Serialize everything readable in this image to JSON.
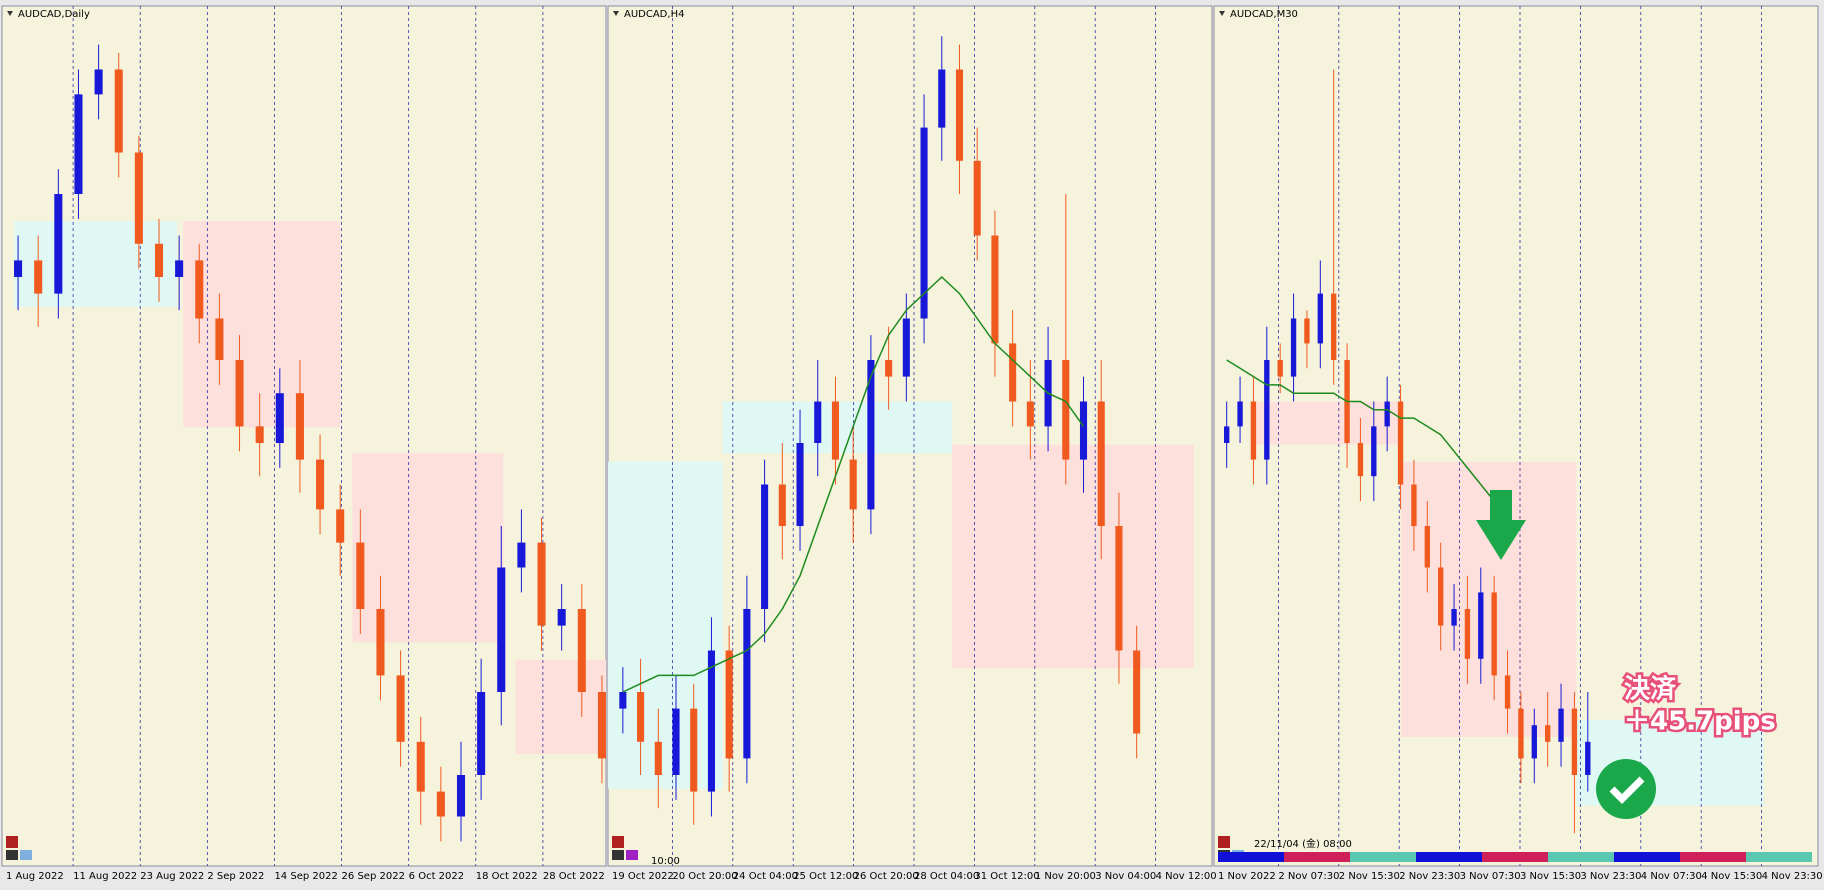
{
  "chart_data": [
    {
      "type": "candlestick",
      "title": "AUDCAD,Daily",
      "xticks": [
        "1 Aug 2022",
        "11 Aug 2022",
        "23 Aug 2022",
        "2 Sep 2022",
        "14 Sep 2022",
        "26 Sep 2022",
        "6 Oct 2022",
        "18 Oct 2022",
        "28 Oct 2022"
      ],
      "ylim": [
        0,
        100
      ],
      "up_color": "#1818d8",
      "down_color": "#f05a1e",
      "open": [
        70,
        72,
        68,
        80,
        92,
        95,
        85,
        74,
        70,
        72,
        65,
        60,
        52,
        50,
        56,
        48,
        42,
        38,
        30,
        22,
        14,
        8,
        5,
        10,
        20,
        35,
        38,
        28,
        30,
        20
      ],
      "high": [
        75,
        75,
        83,
        95,
        98,
        97,
        87,
        77,
        75,
        74,
        68,
        63,
        56,
        59,
        60,
        51,
        45,
        42,
        34,
        25,
        17,
        11,
        14,
        24,
        40,
        42,
        41,
        33,
        33,
        22
      ],
      "low": [
        66,
        64,
        65,
        77,
        89,
        82,
        71,
        67,
        66,
        62,
        57,
        49,
        46,
        47,
        44,
        39,
        34,
        27,
        19,
        11,
        4,
        2,
        2,
        7,
        16,
        32,
        25,
        25,
        17,
        9
      ],
      "close": [
        72,
        68,
        80,
        92,
        95,
        85,
        74,
        70,
        72,
        65,
        60,
        52,
        50,
        56,
        48,
        42,
        38,
        30,
        22,
        14,
        8,
        5,
        10,
        20,
        35,
        38,
        28,
        30,
        20,
        12
      ]
    },
    {
      "type": "candlestick",
      "title": "AUDCAD,H4",
      "xticks": [
        "19 Oct 2022",
        "20 Oct 20:00",
        "24 Oct 04:00",
        "25 Oct 12:00",
        "26 Oct 20:00",
        "28 Oct 04:00",
        "31 Oct 12:00",
        "1 Nov 20:00",
        "3 Nov 04:00",
        "4 Nov 12:00"
      ],
      "ylim": [
        0,
        100
      ],
      "up_color": "#1818d8",
      "down_color": "#f05a1e",
      "ma_color": "#1e8a1e",
      "open": [
        18,
        20,
        14,
        10,
        18,
        8,
        25,
        12,
        30,
        45,
        40,
        50,
        55,
        48,
        42,
        60,
        58,
        65,
        88,
        95,
        84,
        75,
        62,
        55,
        52,
        60,
        48,
        55,
        40,
        25
      ],
      "high": [
        23,
        24,
        18,
        22,
        21,
        29,
        28,
        34,
        48,
        50,
        54,
        60,
        58,
        52,
        63,
        64,
        68,
        92,
        99,
        98,
        88,
        78,
        66,
        60,
        64,
        80,
        58,
        60,
        44,
        28
      ],
      "low": [
        15,
        10,
        6,
        7,
        4,
        5,
        8,
        9,
        26,
        36,
        37,
        46,
        45,
        38,
        39,
        54,
        55,
        62,
        84,
        80,
        72,
        58,
        52,
        48,
        49,
        45,
        44,
        36,
        21,
        12
      ],
      "close": [
        20,
        14,
        10,
        18,
        8,
        25,
        12,
        30,
        45,
        40,
        50,
        55,
        48,
        42,
        60,
        58,
        65,
        88,
        95,
        84,
        75,
        62,
        55,
        52,
        60,
        48,
        55,
        40,
        25,
        15
      ],
      "ma": [
        20,
        21,
        22,
        22,
        22,
        23,
        24,
        25,
        27,
        30,
        34,
        40,
        46,
        52,
        58,
        63,
        66,
        68,
        70,
        68,
        65,
        62,
        60,
        58,
        56,
        55,
        52,
        null,
        null,
        null
      ],
      "time_label": "10:00"
    },
    {
      "type": "candlestick",
      "title": "AUDCAD,M30",
      "xticks": [
        "1 Nov 2022",
        "2 Nov 07:30",
        "2 Nov 15:30",
        "2 Nov 23:30",
        "3 Nov 07:30",
        "3 Nov 15:30",
        "3 Nov 23:30",
        "4 Nov 07:30",
        "4 Nov 15:30",
        "4 Nov 23:30"
      ],
      "ylim": [
        0,
        100
      ],
      "up_color": "#1818d8",
      "down_color": "#f05a1e",
      "ma_color": "#1e8a1e",
      "open": [
        50,
        52,
        55,
        48,
        60,
        58,
        65,
        62,
        68,
        60,
        50,
        46,
        52,
        55,
        45,
        40,
        35,
        28,
        30,
        24,
        32,
        22,
        18,
        12,
        16,
        14,
        18,
        10
      ],
      "high": [
        55,
        58,
        58,
        64,
        62,
        68,
        66,
        72,
        95,
        62,
        53,
        55,
        58,
        57,
        48,
        43,
        38,
        33,
        34,
        35,
        34,
        25,
        20,
        18,
        20,
        21,
        20,
        20
      ],
      "low": [
        47,
        50,
        45,
        45,
        56,
        55,
        59,
        59,
        57,
        47,
        43,
        43,
        49,
        42,
        37,
        32,
        25,
        25,
        21,
        21,
        19,
        15,
        9,
        9,
        11,
        11,
        3,
        8
      ],
      "close": [
        52,
        55,
        48,
        60,
        58,
        65,
        62,
        68,
        60,
        50,
        46,
        52,
        55,
        45,
        40,
        35,
        28,
        30,
        24,
        32,
        22,
        18,
        12,
        16,
        14,
        18,
        10,
        14
      ],
      "ma": [
        60,
        59,
        58,
        57,
        57,
        56,
        56,
        56,
        56,
        55,
        55,
        54,
        54,
        53,
        53,
        52,
        51,
        49,
        47,
        45,
        43,
        null,
        null,
        null,
        null,
        null,
        null,
        null
      ],
      "time_label": "22/11/04 (金) 08:00",
      "annotation": [
        "決済",
        "＋45.7pips"
      ]
    }
  ]
}
